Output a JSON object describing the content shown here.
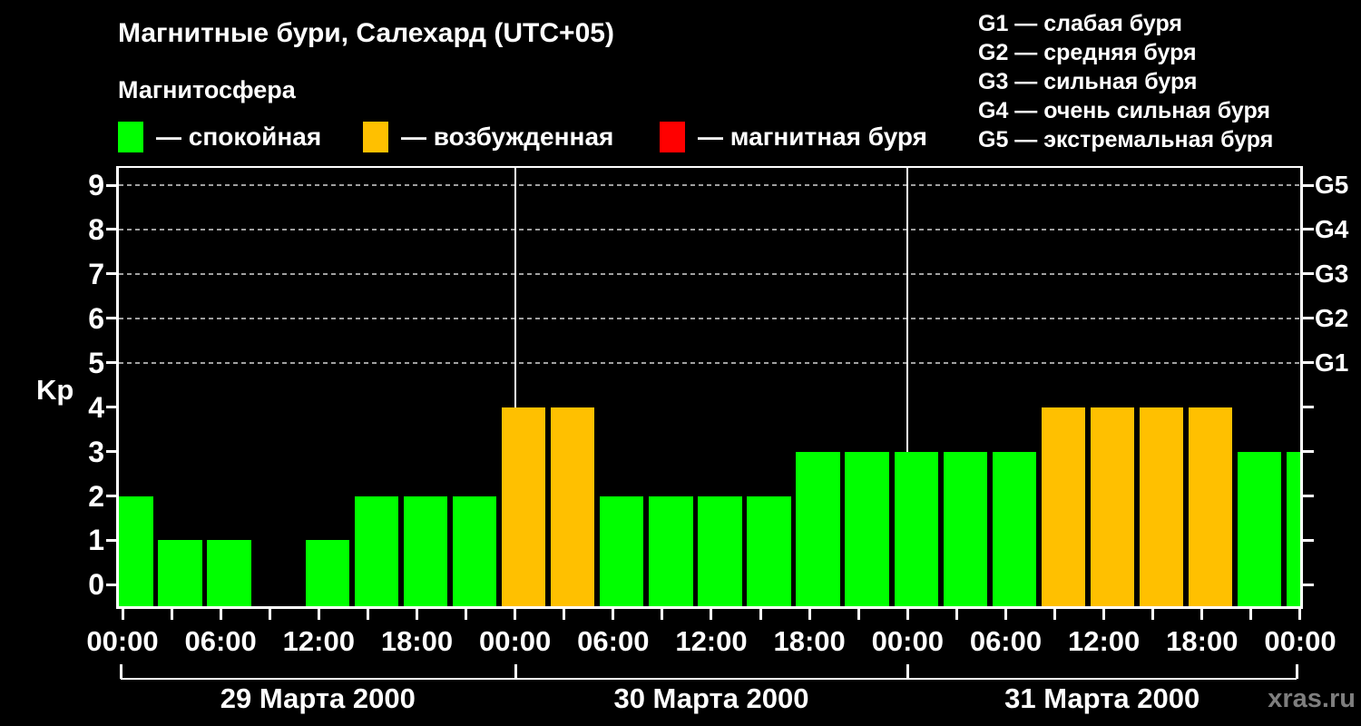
{
  "title": "Магнитные бури, Салехард (UTC+05)",
  "subtitle": "Магнитосфера",
  "activity_legend": [
    {
      "label": "— спокойная",
      "color": "#00FF00"
    },
    {
      "label": "— возбужденная",
      "color": "#FFC000"
    },
    {
      "label": "— магнитная буря",
      "color": "#FF0000"
    }
  ],
  "storm_scale": [
    "G1 — слабая буря",
    "G2 — средняя буря",
    "G3 — сильная буря",
    "G4 — очень сильная буря",
    "G5 — экстремальная буря"
  ],
  "watermark": "xras.ru",
  "chart_data": {
    "type": "bar",
    "title": "Магнитные бури, Салехард (UTC+05)",
    "ylabel": "Kp",
    "ylim": [
      0,
      9
    ],
    "yticks": [
      0,
      1,
      2,
      3,
      4,
      5,
      6,
      7,
      8,
      9
    ],
    "grid_levels": [
      5,
      6,
      7,
      8,
      9
    ],
    "right_axis": {
      "values": [
        5,
        6,
        7,
        8,
        9
      ],
      "labels": [
        "G1",
        "G2",
        "G3",
        "G4",
        "G5"
      ]
    },
    "bar_interval_hours": 3,
    "time_labels": [
      "00:00",
      "06:00",
      "12:00",
      "18:00",
      "00:00",
      "06:00",
      "12:00",
      "18:00",
      "00:00",
      "06:00",
      "12:00",
      "18:00",
      "00:00"
    ],
    "days": [
      {
        "date": "29 Марта 2000",
        "values": [
          2,
          1,
          1,
          0,
          1,
          2,
          2,
          2
        ]
      },
      {
        "date": "30 Марта 2000",
        "values": [
          4,
          4,
          2,
          2,
          2,
          2,
          3,
          3
        ]
      },
      {
        "date": "31 Марта 2000",
        "values": [
          3,
          3,
          3,
          4,
          4,
          4,
          4,
          3
        ]
      }
    ],
    "next_day_partial_value": 3,
    "colors": {
      "quiet": "#00FF00",
      "excited": "#FFC000",
      "storm": "#FF0000"
    },
    "color_thresholds": {
      "excited_kp": 4,
      "storm_kp": 5
    },
    "grid_on": true,
    "legend_position": "top"
  }
}
